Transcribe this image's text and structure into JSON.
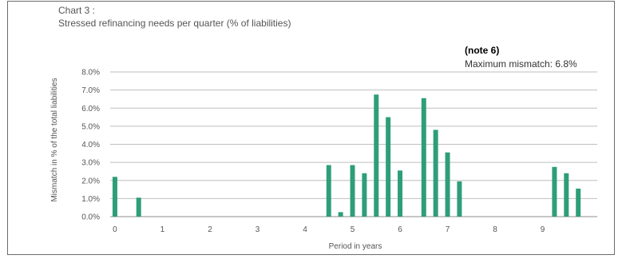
{
  "header": {
    "chart_number": "Chart 3 :",
    "title": "Stressed refinancing needs per quarter  (% of liabilities)"
  },
  "annotations": {
    "note": "(note 6)",
    "max_mismatch": "Maximum mismatch: 6.8%"
  },
  "colors": {
    "bar": "#2e9e7a",
    "grid": "#bfbfbf",
    "axis": "#8c8c8c"
  },
  "chart_data": {
    "type": "bar",
    "title": "Stressed refinancing needs per quarter  (% of liabilities)",
    "xlabel": "Period in years",
    "ylabel": "Mismatch in % of the total liabilities",
    "ylim": [
      0,
      8
    ],
    "xlim": [
      -0.1,
      10.15
    ],
    "grid": true,
    "y_ticks": [
      "0.0%",
      "1.0%",
      "2.0%",
      "3.0%",
      "4.0%",
      "5.0%",
      "6.0%",
      "7.0%",
      "8.0%"
    ],
    "x_ticks": [
      "0",
      "1",
      "2",
      "3",
      "4",
      "5",
      "6",
      "7",
      "8",
      "9"
    ],
    "x": [
      0,
      0.5,
      4.5,
      4.75,
      5,
      5.25,
      5.5,
      5.75,
      6,
      6.5,
      6.75,
      7,
      7.25,
      9.25,
      9.5,
      9.75
    ],
    "values": [
      2.2,
      1.05,
      2.85,
      0.25,
      2.85,
      2.4,
      6.75,
      5.5,
      2.55,
      6.55,
      4.8,
      3.55,
      1.95,
      2.75,
      2.4,
      1.55
    ]
  }
}
